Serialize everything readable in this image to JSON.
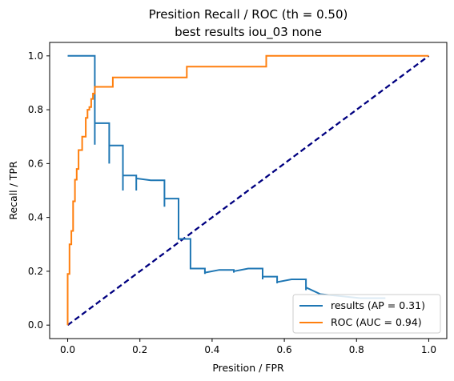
{
  "chart_data": {
    "type": "line",
    "title": "Presition Recall / ROC (th = 0.50)",
    "subtitle": "best results iou_03 none",
    "xlabel": "Presition / FPR",
    "ylabel": "Recall / TPR",
    "xlim": [
      -0.05,
      1.05
    ],
    "ylim": [
      -0.05,
      1.05
    ],
    "xticks": [
      "0.0",
      "0.2",
      "0.4",
      "0.6",
      "0.8",
      "1.0"
    ],
    "yticks": [
      "0.0",
      "0.2",
      "0.4",
      "0.6",
      "0.8",
      "1.0"
    ],
    "legend_position": "lower-right",
    "series": [
      {
        "name": "results (AP = 0.31)",
        "color": "#1f77b4",
        "style": "solid",
        "x": [
          0.0,
          0.075,
          0.075,
          0.075,
          0.075,
          0.075,
          0.115,
          0.115,
          0.115,
          0.115,
          0.153,
          0.153,
          0.153,
          0.153,
          0.19,
          0.19,
          0.19,
          0.19,
          0.23,
          0.23,
          0.268,
          0.268,
          0.268,
          0.268,
          0.307,
          0.307,
          0.34,
          0.34,
          0.38,
          0.38,
          0.38,
          0.38,
          0.42,
          0.42,
          0.46,
          0.46,
          0.46,
          0.46,
          0.5,
          0.5,
          0.54,
          0.54,
          0.54,
          0.54,
          0.58,
          0.58,
          0.58,
          0.58,
          0.62,
          0.62,
          0.66,
          0.66,
          0.66,
          0.66,
          0.7,
          0.7,
          0.74,
          0.74,
          0.81,
          0.81,
          0.88
        ],
        "y": [
          1.0,
          1.0,
          0.67,
          0.75,
          0.75,
          0.75,
          0.75,
          0.6,
          0.667,
          0.667,
          0.667,
          0.5,
          0.556,
          0.556,
          0.556,
          0.5,
          0.545,
          0.545,
          0.538,
          0.538,
          0.538,
          0.44,
          0.47,
          0.47,
          0.47,
          0.32,
          0.32,
          0.21,
          0.21,
          0.19,
          0.195,
          0.195,
          0.205,
          0.205,
          0.205,
          0.195,
          0.2,
          0.2,
          0.21,
          0.21,
          0.21,
          0.17,
          0.18,
          0.18,
          0.18,
          0.155,
          0.16,
          0.16,
          0.17,
          0.17,
          0.17,
          0.13,
          0.14,
          0.14,
          0.115,
          0.115,
          0.11,
          0.11,
          0.1,
          0.1,
          0.1
        ]
      },
      {
        "name": "ROC (AUC = 0.94)",
        "color": "#ff7f0e",
        "style": "solid",
        "x": [
          0.0,
          0.0,
          0.005,
          0.005,
          0.01,
          0.01,
          0.015,
          0.015,
          0.02,
          0.02,
          0.025,
          0.025,
          0.03,
          0.03,
          0.04,
          0.04,
          0.05,
          0.05,
          0.055,
          0.055,
          0.06,
          0.06,
          0.065,
          0.065,
          0.07,
          0.07,
          0.075,
          0.075,
          0.125,
          0.125,
          0.33,
          0.33,
          0.55,
          0.55,
          1.0
        ],
        "y": [
          0.0,
          0.19,
          0.19,
          0.3,
          0.3,
          0.35,
          0.35,
          0.46,
          0.46,
          0.54,
          0.54,
          0.58,
          0.58,
          0.65,
          0.65,
          0.7,
          0.7,
          0.77,
          0.77,
          0.8,
          0.8,
          0.81,
          0.81,
          0.84,
          0.84,
          0.86,
          0.86,
          0.885,
          0.885,
          0.92,
          0.92,
          0.96,
          0.96,
          1.0,
          1.0
        ]
      },
      {
        "name": "",
        "color": "#000080",
        "style": "dashed",
        "x": [
          0.0,
          1.0
        ],
        "y": [
          0.0,
          1.0
        ]
      }
    ]
  }
}
